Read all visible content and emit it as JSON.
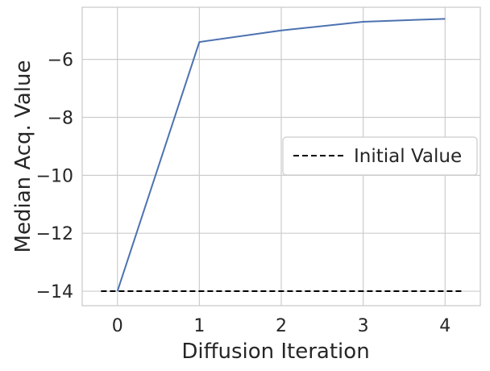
{
  "chart_data": {
    "type": "line",
    "xlabel": "Diffusion Iteration",
    "ylabel": "Median Acq. Value",
    "xlim": [
      -0.43,
      4.43
    ],
    "ylim": [
      -14.5,
      -4.2
    ],
    "x_ticks": [
      "0",
      "1",
      "2",
      "3",
      "4"
    ],
    "y_ticks": [
      "−6",
      "−8",
      "−10",
      "−12",
      "−14"
    ],
    "grid": true,
    "legend_position": "center-right",
    "series": [
      {
        "color": "#4c72b0",
        "style": "solid",
        "x": [
          0,
          1,
          2,
          3,
          4
        ],
        "y": [
          -14.0,
          -5.4,
          -5.0,
          -4.7,
          -4.6
        ]
      },
      {
        "name": "Initial Value",
        "color": "#000000",
        "style": "dashed",
        "x": [
          -0.2,
          4.2
        ],
        "y": [
          -14.0,
          -14.0
        ]
      }
    ]
  }
}
